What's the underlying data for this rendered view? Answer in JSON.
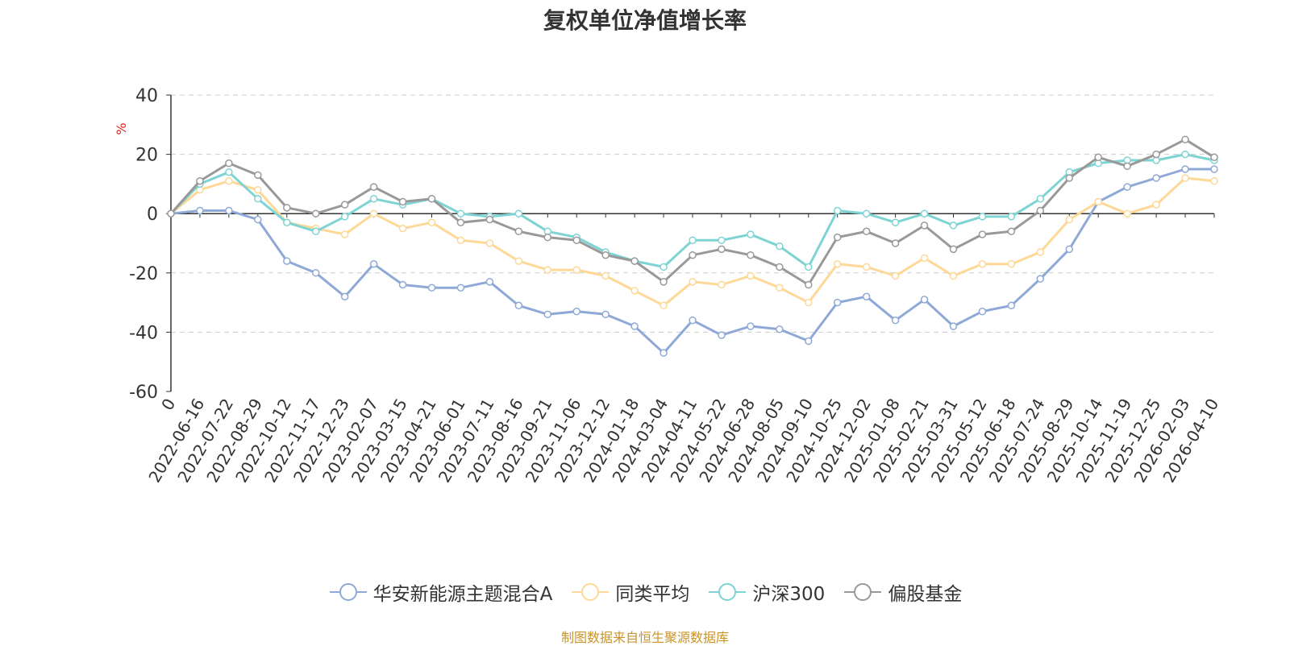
{
  "chart_data": {
    "type": "line",
    "title": "复权单位净值增长率",
    "ylabel": "%",
    "ylim": [
      -60,
      40
    ],
    "yticks": [
      40,
      20,
      0,
      -20,
      -40,
      -60
    ],
    "grid": true,
    "legend_position": "bottom",
    "categories": [
      "0",
      "2022-06-16",
      "2022-07-22",
      "2022-08-29",
      "2022-10-12",
      "2022-11-17",
      "2022-12-23",
      "2023-02-07",
      "2023-03-15",
      "2023-04-21",
      "2023-06-01",
      "2023-07-11",
      "2023-08-16",
      "2023-09-21",
      "2023-11-06",
      "2023-12-12",
      "2024-01-18",
      "2024-03-04",
      "2024-04-11",
      "2024-05-22",
      "2024-06-28",
      "2024-08-05",
      "2024-09-10",
      "2024-10-25",
      "2024-12-02",
      "2025-01-08",
      "2025-02-21",
      "2025-03-31",
      "2025-05-12",
      "2025-06-18",
      "2025-07-24",
      "2025-08-29",
      "2025-10-14",
      "2025-11-19",
      "2025-12-25",
      "2026-02-03",
      "2026-04-10"
    ],
    "series": [
      {
        "name": "华安新能源主题混合A",
        "color": "#8fa9d6",
        "values": [
          0,
          1,
          1,
          -2,
          -16,
          -20,
          -28,
          -17,
          -24,
          -25,
          -25,
          -23,
          -31,
          -34,
          -33,
          -34,
          -38,
          -47,
          -36,
          -41,
          -38,
          -39,
          -43,
          -30,
          -28,
          -36,
          -29,
          -38,
          -33,
          -31,
          -22,
          -12,
          4,
          9,
          12,
          15,
          15
        ]
      },
      {
        "name": "同类平均",
        "color": "#fdd897",
        "values": [
          0,
          8,
          11,
          8,
          -3,
          -5,
          -7,
          0,
          -5,
          -3,
          -9,
          -10,
          -16,
          -19,
          -19,
          -21,
          -26,
          -31,
          -23,
          -24,
          -21,
          -25,
          -30,
          -17,
          -18,
          -21,
          -15,
          -21,
          -17,
          -17,
          -13,
          -2,
          4,
          0,
          3,
          12,
          11
        ]
      },
      {
        "name": "沪深300",
        "color": "#7ed3d3",
        "values": [
          0,
          10,
          14,
          5,
          -3,
          -6,
          -1,
          5,
          3,
          5,
          0,
          -1,
          0,
          -6,
          -8,
          -13,
          -16,
          -18,
          -9,
          -9,
          -7,
          -11,
          -18,
          1,
          0,
          -3,
          0,
          -4,
          -1,
          -1,
          5,
          14,
          17,
          18,
          18,
          20,
          18
        ]
      },
      {
        "name": "偏股基金",
        "color": "#999999",
        "values": [
          0,
          11,
          17,
          13,
          2,
          0,
          3,
          9,
          4,
          5,
          -3,
          -2,
          -6,
          -8,
          -9,
          -14,
          -16,
          -23,
          -14,
          -12,
          -14,
          -18,
          -24,
          -8,
          -6,
          -10,
          -4,
          -12,
          -7,
          -6,
          1,
          12,
          19,
          16,
          20,
          25,
          19
        ]
      }
    ]
  },
  "source_text": "制图数据来自恒生聚源数据库"
}
